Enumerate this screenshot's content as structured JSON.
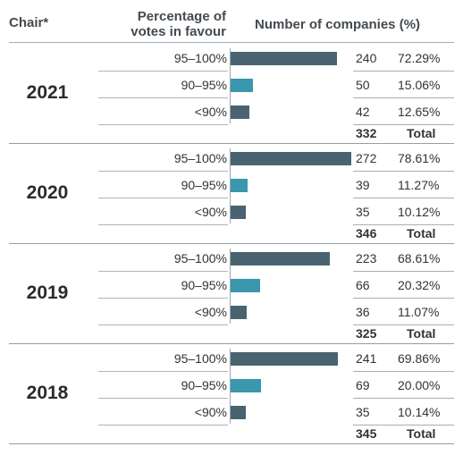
{
  "header": {
    "chair": "Chair*",
    "pct_line1": "Percentage of",
    "pct_line2": "votes in favour",
    "num": "Number of companies (%)"
  },
  "colors": {
    "bar_main": "#4a6370",
    "bar_mid": "#3a97ad",
    "bar_low": "#4a6370"
  },
  "chart_data": {
    "type": "bar",
    "categories": [
      "95–100%",
      "90–95%",
      "<90%"
    ],
    "total_label": "Total",
    "groups": [
      {
        "year": "2021",
        "counts": [
          240,
          50,
          42
        ],
        "percents": [
          "72.29%",
          "15.06%",
          "12.65%"
        ],
        "total": 332
      },
      {
        "year": "2020",
        "counts": [
          272,
          39,
          35
        ],
        "percents": [
          "78.61%",
          "11.27%",
          "10.12%"
        ],
        "total": 346
      },
      {
        "year": "2019",
        "counts": [
          223,
          66,
          36
        ],
        "percents": [
          "68.61%",
          "20.32%",
          "11.07%"
        ],
        "total": 325
      },
      {
        "year": "2018",
        "counts": [
          241,
          69,
          35
        ],
        "percents": [
          "69.86%",
          "20.00%",
          "10.14%"
        ],
        "total": 345
      }
    ]
  }
}
